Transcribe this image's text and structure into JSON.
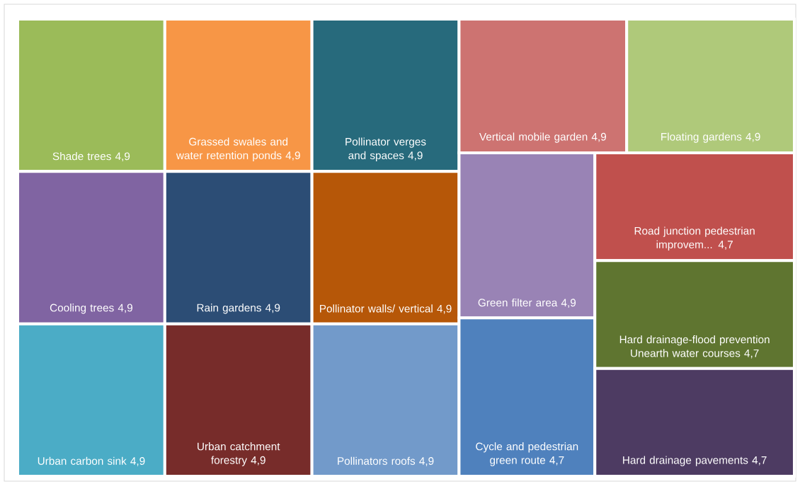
{
  "chart_data": {
    "type": "other",
    "categories": [
      "Shade trees",
      "Cooling trees",
      "Urban carbon sink",
      "Grassed swales and water retention ponds",
      "Rain gardens",
      "Urban catchment forestry",
      "Pollinator verges and spaces",
      "Pollinator walls/ vertical",
      "Pollinators roofs",
      "Vertical mobile garden",
      "Floating gardens",
      "Green filter area",
      "Cycle and pedestrian green route",
      "Road junction pedestrian improvem...",
      "Hard drainage-flood prevention Unearth water courses",
      "Hard drainage pavements"
    ],
    "values": [
      4.9,
      4.9,
      4.9,
      4.9,
      4.9,
      4.9,
      4.9,
      4.9,
      4.9,
      4.9,
      4.9,
      4.9,
      4.7,
      4.7,
      4.7,
      4.7
    ],
    "value_labels": [
      "4,9",
      "4,9",
      "4,9",
      "4,9",
      "4,9",
      "4,9",
      "4,9",
      "4,9",
      "4,9",
      "4,9",
      "4,9",
      "4,9",
      "4,7",
      "4,7",
      "4,7",
      "4,7"
    ],
    "colors": [
      "#9bbb59",
      "#8064a2",
      "#4bacc6",
      "#f79646",
      "#2c4d75",
      "#772c2a",
      "#276a7c",
      "#b65708",
      "#729aca",
      "#cd7371",
      "#afc97a",
      "#9983b5",
      "#4f81bd",
      "#c0504d",
      "#5f7530",
      "#4d3b62"
    ]
  }
}
